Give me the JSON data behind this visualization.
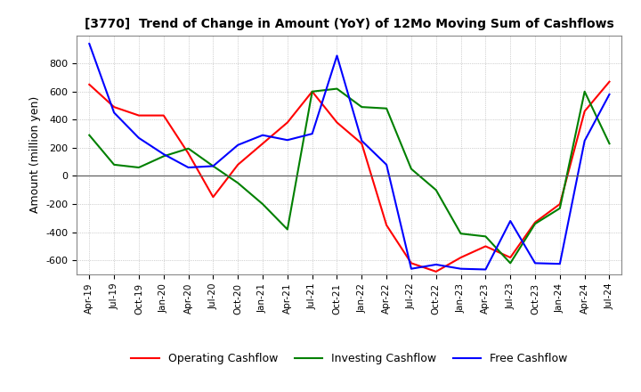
{
  "title": "[3770]  Trend of Change in Amount (YoY) of 12Mo Moving Sum of Cashflows",
  "ylabel": "Amount (million yen)",
  "ylim": [
    -700,
    1000
  ],
  "yticks": [
    -600,
    -400,
    -200,
    0,
    200,
    400,
    600,
    800
  ],
  "background_color": "#ffffff",
  "grid_color": "#aaaaaa",
  "legend_labels": [
    "Operating Cashflow",
    "Investing Cashflow",
    "Free Cashflow"
  ],
  "line_colors": [
    "#ff0000",
    "#008000",
    "#0000ff"
  ],
  "x_labels": [
    "Apr-19",
    "Jul-19",
    "Oct-19",
    "Jan-20",
    "Apr-20",
    "Jul-20",
    "Oct-20",
    "Jan-21",
    "Apr-21",
    "Jul-21",
    "Oct-21",
    "Jan-22",
    "Apr-22",
    "Jul-22",
    "Oct-22",
    "Jan-23",
    "Apr-23",
    "Jul-23",
    "Oct-23",
    "Jan-24",
    "Apr-24",
    "Jul-24"
  ],
  "operating": [
    650,
    490,
    430,
    430,
    160,
    -150,
    80,
    230,
    380,
    600,
    380,
    230,
    -350,
    -620,
    -680,
    -580,
    -500,
    -580,
    -330,
    -200,
    460,
    670
  ],
  "investing": [
    290,
    80,
    60,
    140,
    195,
    70,
    -50,
    -200,
    -380,
    600,
    620,
    490,
    480,
    50,
    -100,
    -410,
    -430,
    -620,
    -340,
    -230,
    600,
    230
  ],
  "free": [
    940,
    450,
    270,
    155,
    60,
    70,
    220,
    290,
    255,
    300,
    855,
    250,
    80,
    -660,
    -630,
    -660,
    -665,
    -320,
    -620,
    -625,
    250,
    580
  ]
}
